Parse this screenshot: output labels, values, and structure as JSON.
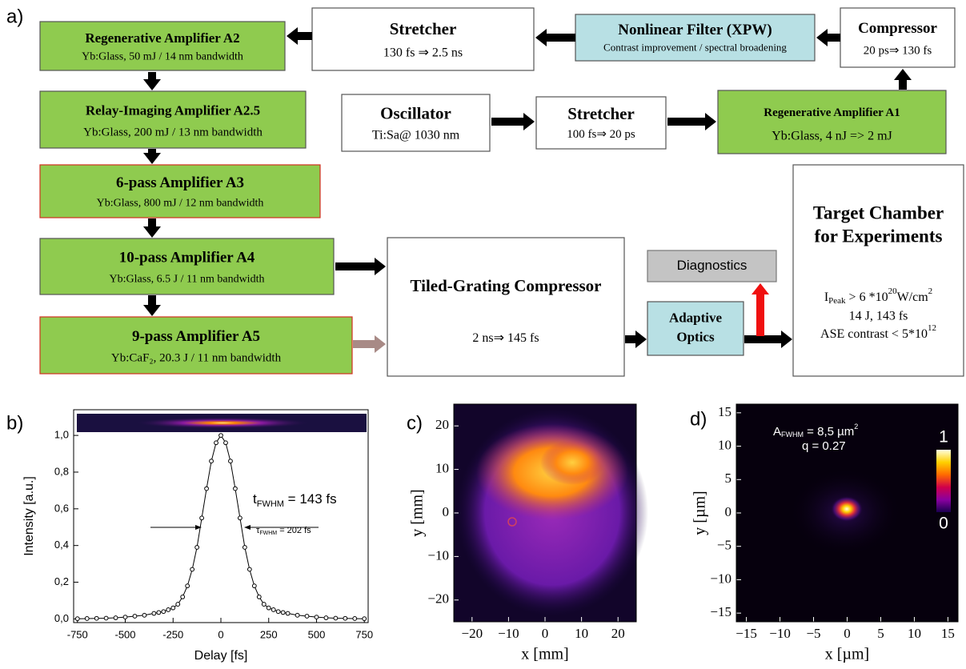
{
  "diagram": {
    "label": "a)",
    "nodes": [
      {
        "title": "Regenerative Amplifier  A2",
        "subtitle": "Yb:Glass, 50 mJ / 14 nm bandwidth"
      },
      {
        "title": "Stretcher",
        "subtitle": "130 fs ⇒ 2.5 ns"
      },
      {
        "title": "Nonlinear Filter (XPW)",
        "subtitle": "Contrast improvement / spectral broadening"
      },
      {
        "title": "Compressor",
        "subtitle": "20 ps⇒ 130 fs"
      },
      {
        "title": "Relay-Imaging Amplifier  A2.5",
        "subtitle": "Yb:Glass, 200 mJ / 13 nm bandwidth"
      },
      {
        "title": "Oscillator",
        "subtitle": "Ti:Sa@ 1030 nm"
      },
      {
        "title": "Stretcher",
        "subtitle": "100 fs⇒ 20 ps"
      },
      {
        "title": "Regenerative Amplifier A1",
        "subtitle": "Yb:Glass, 4 nJ => 2 mJ"
      },
      {
        "title": "6-pass Amplifier A3",
        "subtitle": "Yb:Glass, 800 mJ / 12 nm bandwidth"
      },
      {
        "title": "10-pass Amplifier A4",
        "subtitle": "Yb:Glass, 6.5 J / 11 nm bandwidth"
      },
      {
        "title": "9-pass Amplifier  A5",
        "subtitle": "Yb:CaF₂, 20.3 J / 11 nm bandwidth"
      },
      {
        "title": "Tiled-Grating Compressor",
        "subtitle": "2 ns⇒ 145 fs"
      },
      {
        "title": "Diagnostics"
      },
      {
        "title": [
          "Adaptive",
          "Optics"
        ]
      },
      {
        "title": [
          "Target Chamber",
          "for Experiments"
        ],
        "specs": {
          "peak_symbol": "I",
          "peak_sub": "Peak",
          "peak_text": "  > 6 *10",
          "peak_exp": "20",
          "peak_unit": "W/cm",
          "peak_unit_exp": "2",
          "energy": "14 J, 143 fs",
          "contrast_text": "ASE contrast < 5*10",
          "contrast_exp": "12"
        }
      }
    ]
  },
  "chart_data": [
    {
      "type": "scatter",
      "label": "b)",
      "xlabel": "Delay [fs]",
      "ylabel": "Intensity [a.u.]",
      "color": "#000000",
      "x": [
        -750,
        -700,
        -650,
        -600,
        -550,
        -500,
        -450,
        -400,
        -350,
        -325,
        -300,
        -275,
        -250,
        -225,
        -200,
        -175,
        -150,
        -125,
        -100,
        -75,
        -50,
        -25,
        0,
        25,
        50,
        75,
        100,
        125,
        150,
        175,
        200,
        225,
        250,
        275,
        300,
        325,
        350,
        400,
        450,
        500,
        550,
        600,
        650,
        700,
        750
      ],
      "values": [
        0.001,
        0.002,
        0.003,
        0.004,
        0.006,
        0.01,
        0.015,
        0.02,
        0.03,
        0.035,
        0.04,
        0.05,
        0.06,
        0.08,
        0.12,
        0.18,
        0.27,
        0.39,
        0.55,
        0.71,
        0.86,
        0.96,
        1.0,
        0.96,
        0.86,
        0.71,
        0.55,
        0.39,
        0.27,
        0.18,
        0.12,
        0.08,
        0.06,
        0.05,
        0.04,
        0.035,
        0.03,
        0.02,
        0.015,
        0.01,
        0.006,
        0.004,
        0.003,
        0.002,
        0.001
      ],
      "xlim": [
        -770,
        770
      ],
      "ylim": [
        -0.02,
        1.14
      ],
      "xticks": [
        -750,
        -500,
        -250,
        0,
        250,
        500,
        750
      ],
      "yticks": [
        {
          "value": 0,
          "label": "0,0"
        },
        {
          "value": 0.2,
          "label": "0,2"
        },
        {
          "value": 0.4,
          "label": "0,4"
        },
        {
          "value": 0.6,
          "label": "0,6"
        },
        {
          "value": 0.8,
          "label": "0,8"
        },
        {
          "value": 1.0,
          "label": "1,0"
        }
      ],
      "annotations": {
        "fwhm_t": {
          "symbol": "t",
          "sub": "FWHM",
          "text": " = 143 fs"
        },
        "fwhm_tau": {
          "symbol": "τ",
          "sub": "FWHM",
          "text": " = 202 fs"
        }
      }
    },
    {
      "type": "image",
      "label": "c)",
      "xlabel": "x [mm]",
      "ylabel": "y [mm]",
      "xlim": [
        -25,
        25
      ],
      "ylim": [
        -25,
        25
      ],
      "xticks": [
        {
          "value": -20,
          "label": "−20"
        },
        {
          "value": -10,
          "label": "−10"
        },
        0,
        10,
        20
      ],
      "yticks": [
        {
          "value": -20,
          "label": "−20"
        },
        {
          "value": -10,
          "label": "−10"
        },
        0,
        10,
        20
      ]
    },
    {
      "type": "image",
      "label": "d)",
      "xlabel": "x [µm]",
      "ylabel": "y [µm]",
      "xlim": [
        -16.5,
        16.5
      ],
      "ylim": [
        -16.3,
        16.3
      ],
      "xticks": [
        {
          "value": -15,
          "label": "−15"
        },
        {
          "value": -10,
          "label": "−10"
        },
        {
          "value": -5,
          "label": "−5"
        },
        0,
        5,
        10,
        15
      ],
      "yticks": [
        {
          "value": -15,
          "label": "−15"
        },
        {
          "value": -10,
          "label": "−10"
        },
        {
          "value": -5,
          "label": "−5"
        },
        0,
        5,
        10,
        15
      ],
      "colorbar": {
        "ticks": [
          0,
          1
        ]
      },
      "annotations": {
        "area": {
          "symbol": "A",
          "sub": "FWHM",
          "text": " = 8,5 µm",
          "sup": "2"
        },
        "q": "q = 0.27"
      }
    }
  ]
}
